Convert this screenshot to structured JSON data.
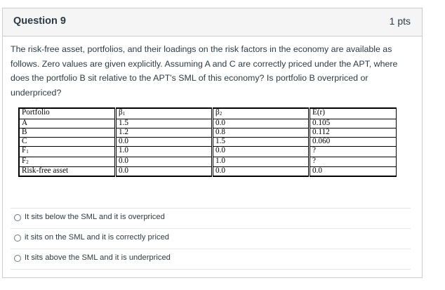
{
  "question": {
    "title": "Question 9",
    "points": "1 pts",
    "text": "The risk-free asset, portfolios, and their loadings on the risk factors in the economy are available as follows. Zero values are given explicitly. Assuming A and C are correctly priced under the APT, where does the portfolio B sit relative to the APT's SML of this economy? Is portfolio B overpriced or underpriced?"
  },
  "table": {
    "headers": [
      "Portfolio",
      "β1",
      "β2",
      "E(r)"
    ],
    "header_parts": [
      {
        "base": "Portfolio",
        "sub": ""
      },
      {
        "base": "β",
        "sub": "1"
      },
      {
        "base": "β",
        "sub": "2"
      },
      {
        "base": "E(r)",
        "sub": ""
      }
    ],
    "rows": [
      [
        {
          "base": "A",
          "sub": ""
        },
        "1.5",
        "0.0",
        "0.105"
      ],
      [
        {
          "base": "B",
          "sub": ""
        },
        "1.2",
        "0.8",
        "0.112"
      ],
      [
        {
          "base": "C",
          "sub": ""
        },
        "0.0",
        "1.5",
        "0.060"
      ],
      [
        {
          "base": "F",
          "sub": "1"
        },
        "1.0",
        "0.0",
        "?"
      ],
      [
        {
          "base": "F",
          "sub": "2"
        },
        "0.0",
        "1.0",
        "?"
      ],
      [
        {
          "base": "Risk-free asset",
          "sub": ""
        },
        "0.0",
        "0.0",
        "0.0"
      ]
    ]
  },
  "answers": [
    {
      "label": "It sits below the SML and it is overpriced",
      "selected": false
    },
    {
      "label": "it sits on the SML and it is correctly priced",
      "selected": false
    },
    {
      "label": "It sits above the SML and it is underpriced",
      "selected": false
    }
  ]
}
